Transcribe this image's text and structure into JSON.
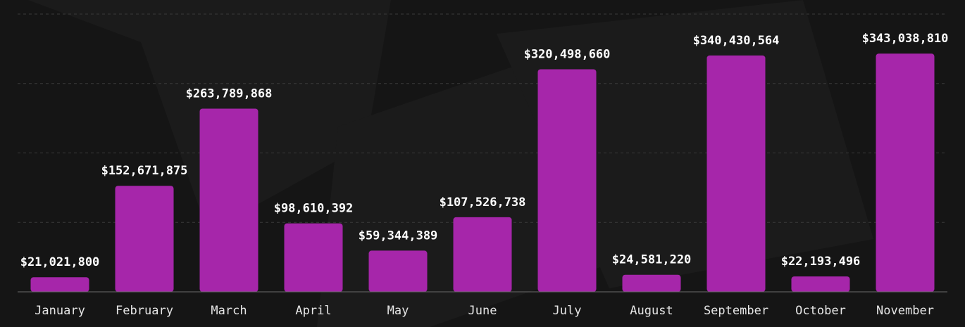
{
  "chart_data": {
    "type": "bar",
    "title": "",
    "xlabel": "",
    "ylabel": "",
    "categories": [
      "January",
      "February",
      "March",
      "April",
      "May",
      "June",
      "July",
      "August",
      "September",
      "October",
      "November"
    ],
    "values": [
      21021800,
      152671875,
      263789868,
      98610392,
      59344389,
      107526738,
      320498660,
      24581220,
      340430564,
      22193496,
      343038810
    ],
    "value_labels": [
      "$21,021,800",
      "$152,671,875",
      "$263,789,868",
      "$98,610,392",
      "$59,344,389",
      "$107,526,738",
      "$320,498,660",
      "$24,581,220",
      "$340,430,564",
      "$22,193,496",
      "$343,038,810"
    ],
    "ylim": [
      0,
      400000000
    ],
    "gridlines": [
      0,
      100000000,
      200000000,
      300000000,
      400000000
    ],
    "grid": true,
    "legend": "none",
    "colors": {
      "bar": "#a626aa",
      "background": "#151515",
      "grid": "#3a3a3a",
      "value_label": "#ffffff",
      "tick_label": "#e6e6e6"
    }
  }
}
